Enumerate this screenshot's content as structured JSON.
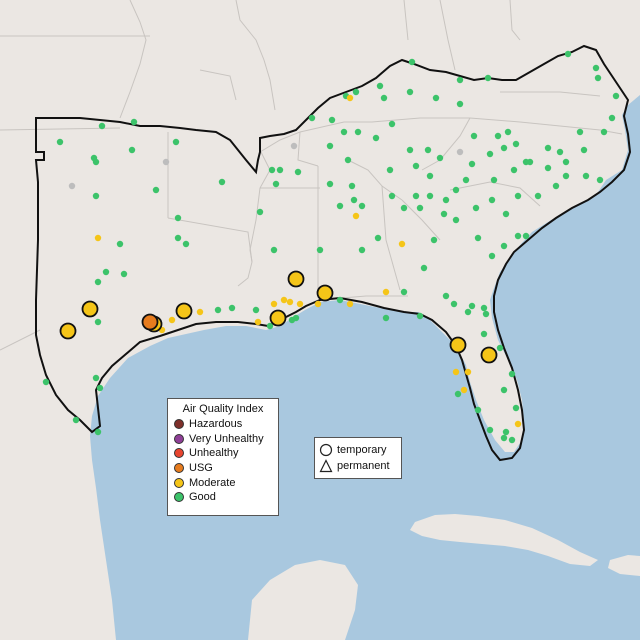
{
  "legend": {
    "title": "Air Quality Index",
    "items": [
      {
        "label": "Hazardous",
        "color": "#7e2f2a"
      },
      {
        "label": "Very Unhealthy",
        "color": "#8f3f97"
      },
      {
        "label": "Unhealthy",
        "color": "#e8452f"
      },
      {
        "label": "USG",
        "color": "#e77c1e"
      },
      {
        "label": "Moderate",
        "color": "#f5c518"
      },
      {
        "label": "Good",
        "color": "#3cc36a"
      }
    ]
  },
  "shape_legend": {
    "items": [
      {
        "label": "temporary",
        "icon": "circle-icon"
      },
      {
        "label": "permanent",
        "icon": "triangle-icon"
      }
    ]
  },
  "colors": {
    "water": "#a9c8df",
    "land": "#ebe7e3",
    "border": "#111111",
    "state_lines": "#c8c4c0",
    "no_data": "#bdbdbd"
  }
}
